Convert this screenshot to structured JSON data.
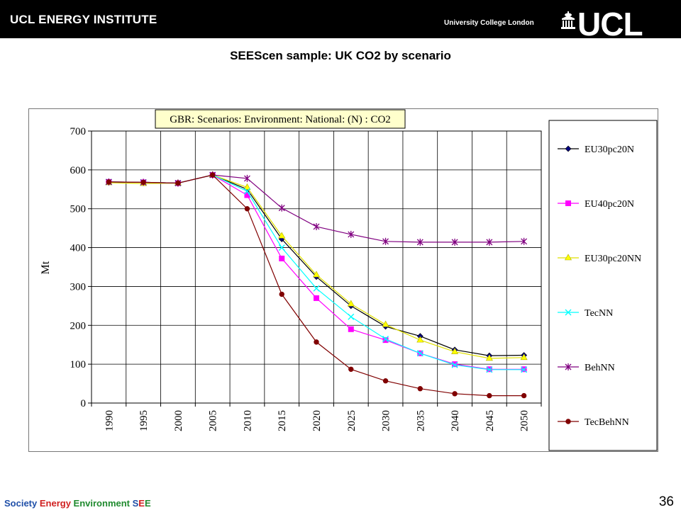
{
  "header": {
    "institute": "UCL ENERGY INSTITUTE",
    "university": "University College London",
    "logo_text": "UCL"
  },
  "slide": {
    "title": "SEEScen sample: UK CO2 by scenario",
    "page_number": "36"
  },
  "footer": {
    "parts": [
      {
        "text": "Society ",
        "color": "#1f4fa8"
      },
      {
        "text": "Energy ",
        "color": "#d02020"
      },
      {
        "text": "Environment ",
        "color": "#1f8a2e"
      },
      {
        "text": "S",
        "color": "#1f4fa8"
      },
      {
        "text": "E",
        "color": "#d02020"
      },
      {
        "text": "E",
        "color": "#1f8a2e"
      }
    ]
  },
  "chart_data": {
    "type": "line",
    "title": "GBR: Scenarios: Environment: National: (N) : CO2",
    "xlabel": "",
    "ylabel": "Mt",
    "x": [
      "1990",
      "1995",
      "2000",
      "2005",
      "2010",
      "2015",
      "2020",
      "2025",
      "2030",
      "2035",
      "2040",
      "2045",
      "2050"
    ],
    "ylim": [
      0,
      700
    ],
    "yticks": [
      0,
      100,
      200,
      300,
      400,
      500,
      600,
      700
    ],
    "grid": true,
    "legend_position": "right",
    "series": [
      {
        "name": "EU30pc20N",
        "color": "#000080",
        "marker": "diamond",
        "values": [
          569,
          568,
          566,
          587,
          550,
          422,
          325,
          250,
          197,
          172,
          137,
          122,
          123
        ]
      },
      {
        "name": "EU40pc20N",
        "color": "#ff00ff",
        "marker": "square",
        "values": [
          569,
          568,
          566,
          587,
          535,
          372,
          270,
          190,
          162,
          128,
          100,
          87,
          87
        ]
      },
      {
        "name": "EU30pc20NN",
        "color": "#ffff00",
        "marker": "triangle",
        "values": [
          567,
          565,
          566,
          587,
          555,
          430,
          330,
          255,
          202,
          162,
          132,
          115,
          117
        ]
      },
      {
        "name": "TecNN",
        "color": "#00ffff",
        "marker": "x",
        "values": [
          569,
          568,
          566,
          587,
          545,
          400,
          295,
          222,
          165,
          128,
          98,
          86,
          86
        ]
      },
      {
        "name": "BehNN",
        "color": "#800080",
        "marker": "star",
        "values": [
          569,
          568,
          566,
          587,
          578,
          502,
          454,
          434,
          416,
          414,
          414,
          414,
          416
        ]
      },
      {
        "name": "TecBehNN",
        "color": "#800000",
        "marker": "circle",
        "values": [
          569,
          568,
          566,
          587,
          500,
          280,
          157,
          87,
          57,
          37,
          24,
          19,
          19
        ]
      }
    ]
  }
}
